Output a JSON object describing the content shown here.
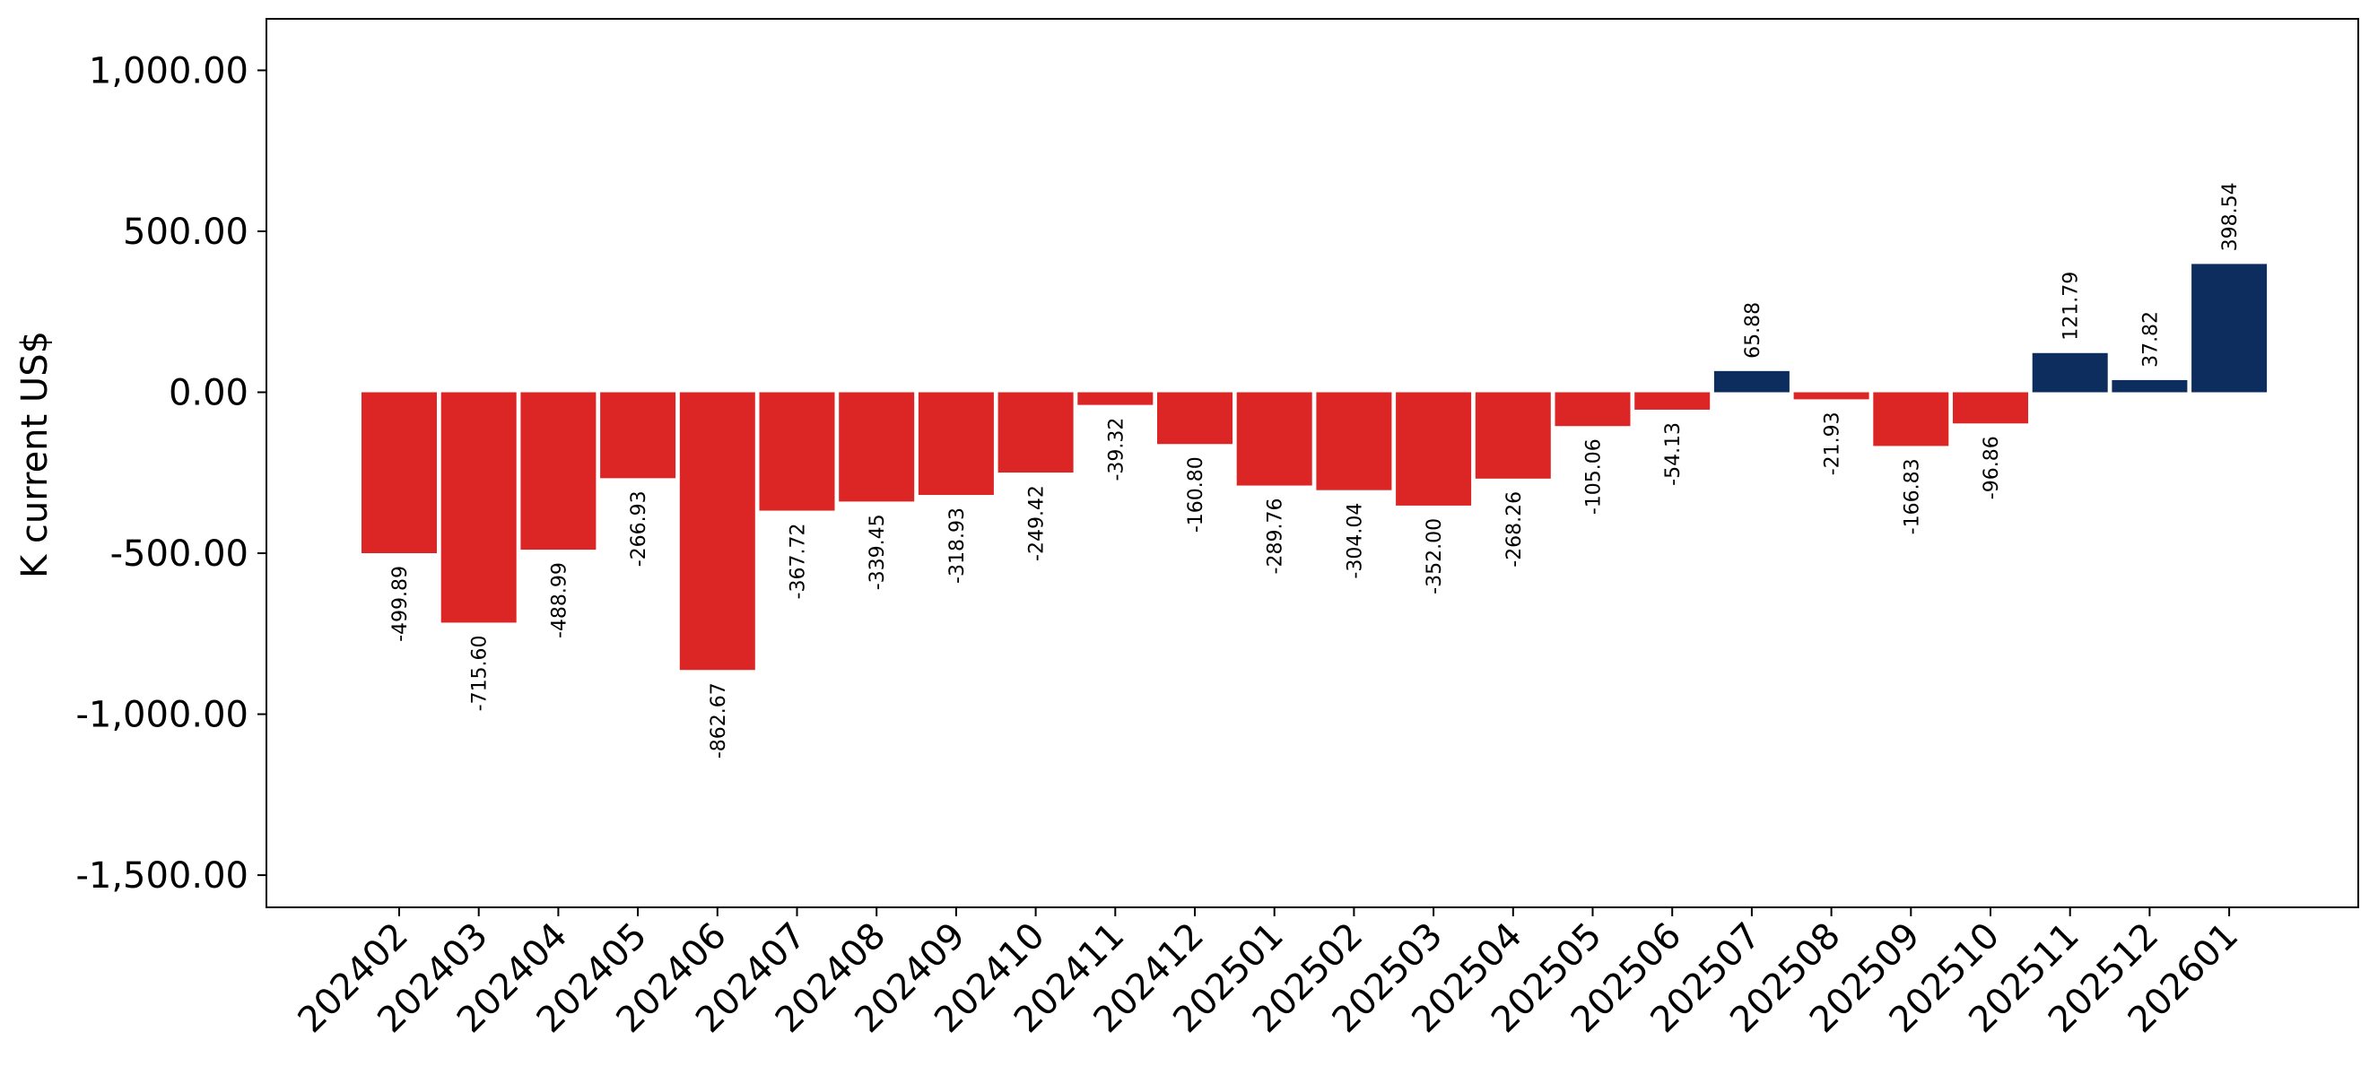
{
  "colors": {
    "negative": "#dc2626",
    "positive": "#0d2d5e",
    "axis": "#000000",
    "background": "#ffffff"
  },
  "chart_data": {
    "type": "bar",
    "title": "",
    "xlabel": "",
    "ylabel": "K current US$",
    "ylim": [
      -1600,
      1160
    ],
    "yticks": [
      1000,
      500,
      0,
      -500,
      -1000,
      -1500
    ],
    "ytick_labels": [
      "1,000.00",
      "500.00",
      "0.00",
      "-500.00",
      "-1,000.00",
      "-1,500.00"
    ],
    "grid": false,
    "categories": [
      "202402",
      "202403",
      "202404",
      "202405",
      "202406",
      "202407",
      "202408",
      "202409",
      "202410",
      "202411",
      "202412",
      "202501",
      "202502",
      "202503",
      "202504",
      "202505",
      "202506",
      "202507",
      "202508",
      "202509",
      "202510",
      "202511",
      "202512",
      "202601"
    ],
    "values": [
      -499.89,
      -715.6,
      -488.99,
      -266.93,
      -862.67,
      -367.72,
      -339.45,
      -318.93,
      -249.42,
      -39.32,
      -160.8,
      -289.76,
      -304.04,
      -352.0,
      -268.26,
      -105.06,
      -54.13,
      65.88,
      -21.93,
      -166.83,
      -96.86,
      121.79,
      37.82,
      398.54
    ],
    "value_labels": [
      "-499.89",
      "-715.60",
      "-488.99",
      "-266.93",
      "-862.67",
      "-367.72",
      "-339.45",
      "-318.93",
      "-249.42",
      "-39.32",
      "-160.80",
      "-289.76",
      "-304.04",
      "-352.00",
      "-268.26",
      "-105.06",
      "-54.13",
      "65.88",
      "-21.93",
      "-166.83",
      "-96.86",
      "121.79",
      "37.82",
      "398.54"
    ]
  }
}
